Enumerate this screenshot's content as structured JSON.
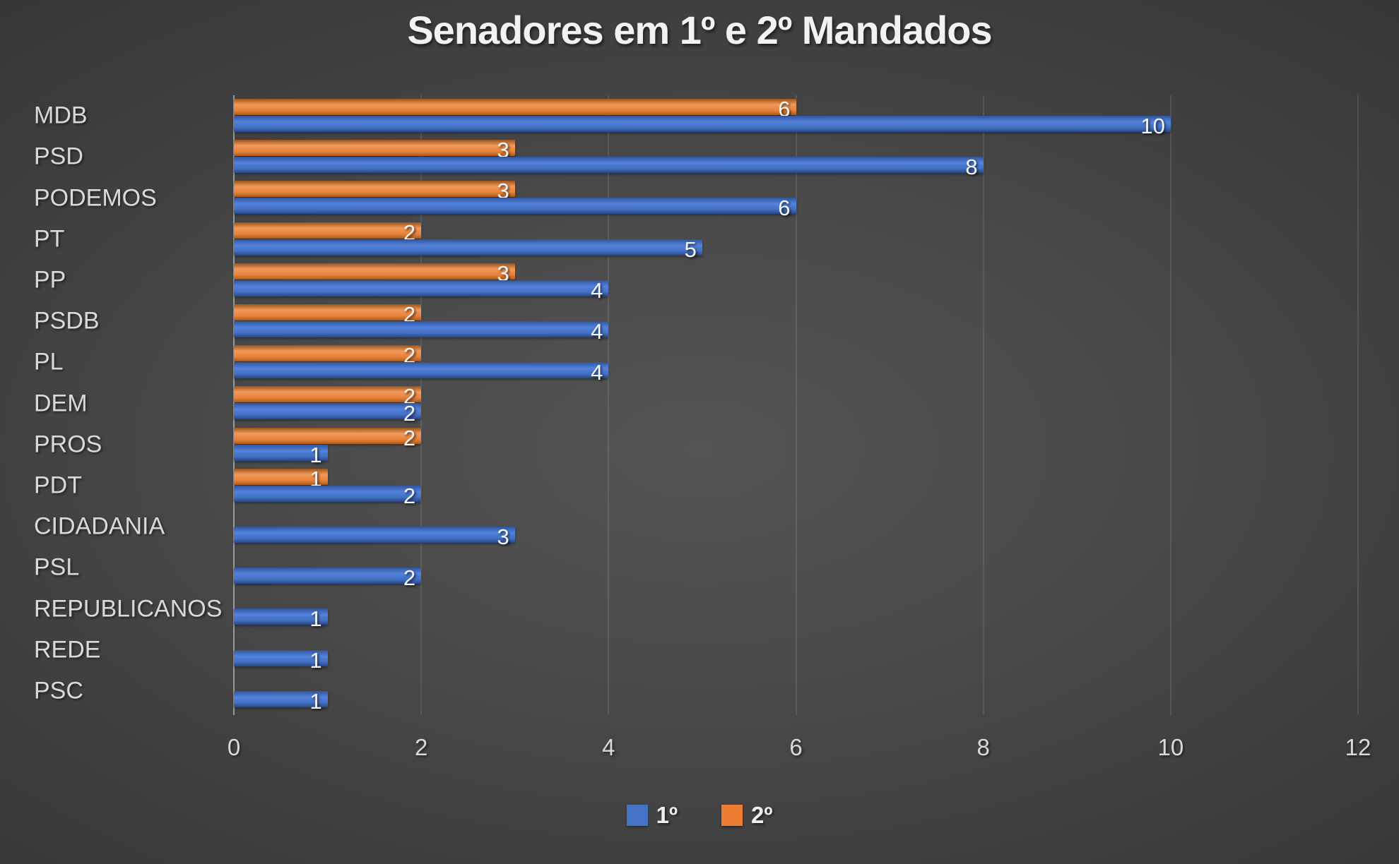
{
  "title": "Senadores em 1º e 2º Mandados",
  "colors": {
    "series1_blue": "#4472C4",
    "series2_orange": "#ED7D31",
    "background_center": "#555555",
    "background_edge": "#222222",
    "text": "#D9D9D9"
  },
  "legend": {
    "position": "bottom",
    "items": [
      {
        "label": "1º",
        "color": "#4472C4"
      },
      {
        "label": "2º",
        "color": "#ED7D31"
      }
    ]
  },
  "chart_data": {
    "type": "bar",
    "orientation": "horizontal",
    "title": "Senadores em 1º e 2º Mandados",
    "categories": [
      "MDB",
      "PSD",
      "PODEMOS",
      "PT",
      "PP",
      "PSDB",
      "PL",
      "DEM",
      "PROS",
      "PDT",
      "CIDADANIA",
      "PSL",
      "REPUBLICANOS",
      "REDE",
      "PSC"
    ],
    "series": [
      {
        "name": "1º",
        "color": "#4472C4",
        "values": [
          10,
          8,
          6,
          5,
          4,
          4,
          4,
          2,
          1,
          2,
          3,
          2,
          1,
          1,
          1
        ]
      },
      {
        "name": "2º",
        "color": "#ED7D31",
        "values": [
          6,
          3,
          3,
          2,
          3,
          2,
          2,
          2,
          2,
          1,
          null,
          null,
          null,
          null,
          null
        ]
      }
    ],
    "xlim": [
      0,
      12
    ],
    "xticks": [
      0,
      2,
      4,
      6,
      8,
      10,
      12
    ],
    "xtick_labels": [
      "0",
      "2",
      "4",
      "6",
      "8",
      "10",
      "12"
    ],
    "grid": true,
    "data_labels": "inside-end",
    "legend_position": "bottom"
  }
}
